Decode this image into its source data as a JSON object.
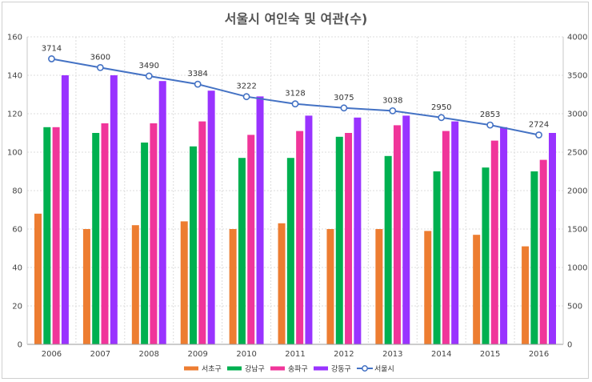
{
  "chart_data": {
    "type": "bar",
    "title": "서울시 여인숙 및 여관(수)",
    "categories": [
      "2006",
      "2007",
      "2008",
      "2009",
      "2010",
      "2011",
      "2012",
      "2013",
      "2014",
      "2015",
      "2016"
    ],
    "series": [
      {
        "name": "서초구",
        "type": "bar",
        "color": "#ED7D31",
        "values": [
          68,
          60,
          62,
          64,
          60,
          63,
          60,
          60,
          59,
          57,
          51
        ]
      },
      {
        "name": "강남구",
        "type": "bar",
        "color": "#00B050",
        "values": [
          113,
          110,
          105,
          103,
          97,
          97,
          108,
          98,
          90,
          92,
          90
        ]
      },
      {
        "name": "송파구",
        "type": "bar",
        "color": "#F0359A",
        "values": [
          113,
          115,
          115,
          116,
          109,
          111,
          110,
          114,
          111,
          106,
          96
        ]
      },
      {
        "name": "강동구",
        "type": "bar",
        "color": "#9933FF",
        "values": [
          140,
          140,
          137,
          132,
          129,
          119,
          118,
          119,
          116,
          113,
          110
        ]
      },
      {
        "name": "서울시",
        "type": "line",
        "axis": "right",
        "color": "#4472C4",
        "values": [
          3714,
          3600,
          3490,
          3384,
          3222,
          3128,
          3075,
          3038,
          2950,
          2853,
          2724
        ]
      }
    ],
    "yleft": {
      "min": 0,
      "max": 160,
      "step": 20
    },
    "yright": {
      "min": 0,
      "max": 4000,
      "step": 500
    },
    "grid": true,
    "legend": "bottom"
  }
}
